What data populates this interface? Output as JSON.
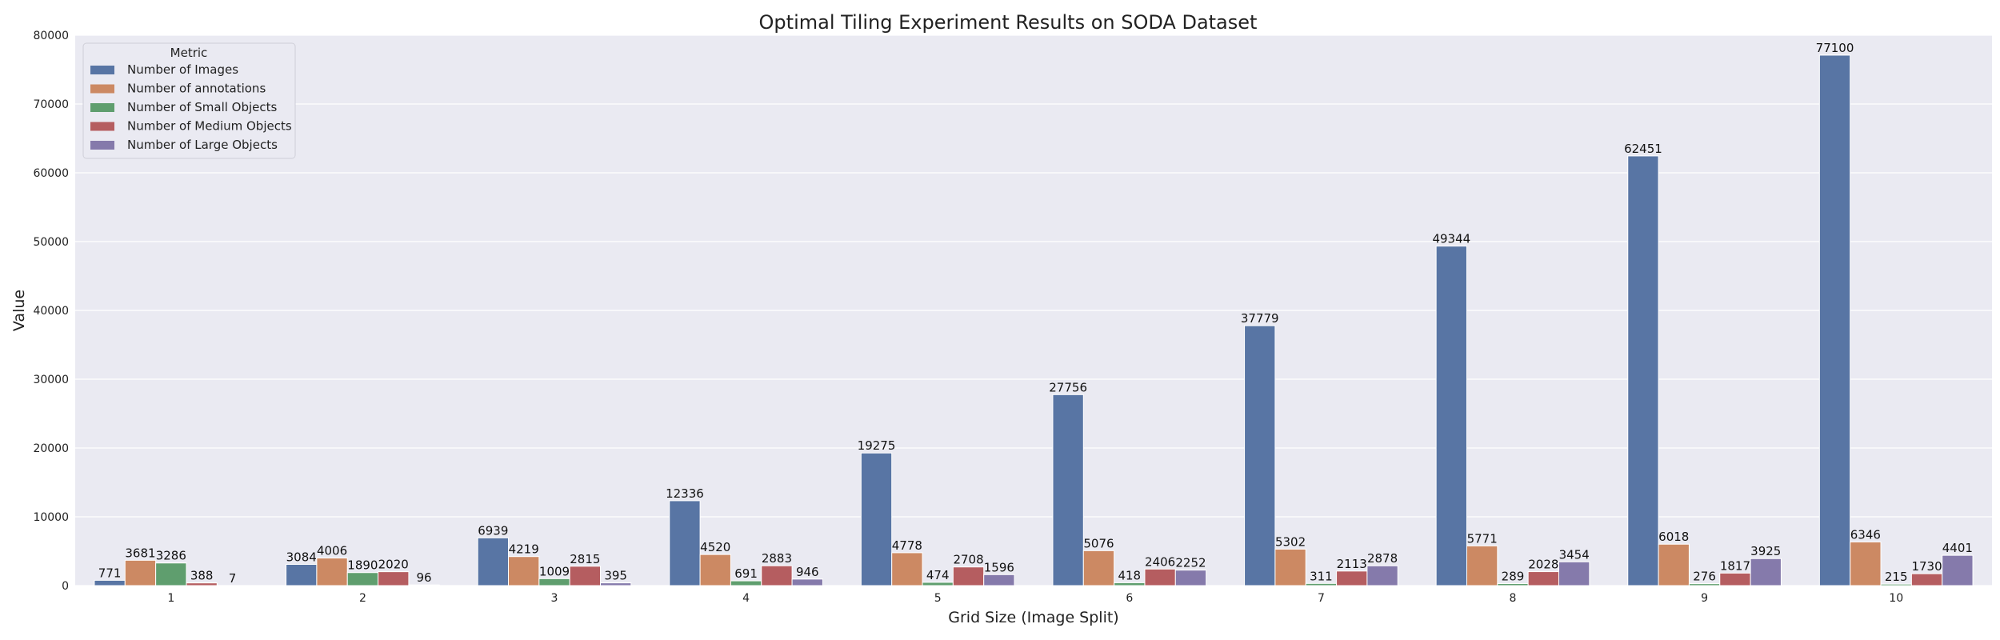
{
  "chart_data": {
    "type": "bar",
    "title": "Optimal Tiling Experiment Results on SODA Dataset",
    "xlabel": "Grid Size (Image Split)",
    "ylabel": "Value",
    "categories": [
      "1",
      "2",
      "3",
      "4",
      "5",
      "6",
      "7",
      "8",
      "9",
      "10"
    ],
    "ylim": [
      0,
      80000
    ],
    "yticks": [
      0,
      10000,
      20000,
      30000,
      40000,
      50000,
      60000,
      70000,
      80000
    ],
    "grid": true,
    "legend": {
      "title": "Metric",
      "position": "top-left"
    },
    "series": [
      {
        "name": "Number of Images",
        "color": "#5875a4",
        "values": [
          771,
          3084,
          6939,
          12336,
          19275,
          27756,
          37779,
          49344,
          62451,
          77100
        ]
      },
      {
        "name": "Number of annotations",
        "color": "#cc8963",
        "values": [
          3681,
          4006,
          4219,
          4520,
          4778,
          5076,
          5302,
          5771,
          6018,
          6346
        ]
      },
      {
        "name": "Number of Small Objects",
        "color": "#5f9e6e",
        "values": [
          3286,
          1890,
          1009,
          691,
          474,
          418,
          311,
          289,
          276,
          215
        ]
      },
      {
        "name": "Number of Medium Objects",
        "color": "#b55d60",
        "values": [
          388,
          2020,
          2815,
          2883,
          2708,
          2406,
          2113,
          2028,
          1817,
          1730
        ]
      },
      {
        "name": "Number of Large Objects",
        "color": "#857aab",
        "values": [
          7,
          96,
          395,
          946,
          1596,
          2252,
          2878,
          3454,
          3925,
          4401
        ]
      }
    ]
  }
}
